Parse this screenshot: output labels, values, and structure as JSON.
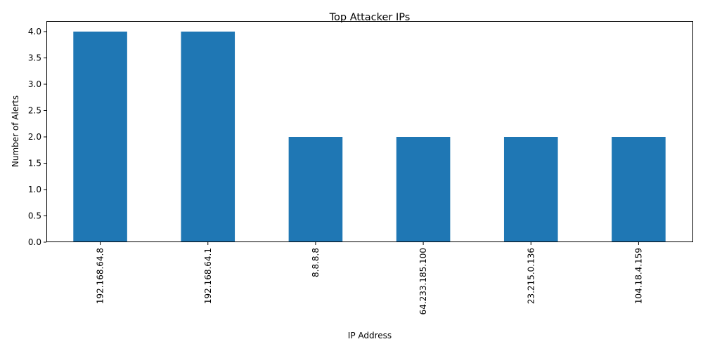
{
  "chart_data": {
    "type": "bar",
    "title": "Top Attacker IPs",
    "xlabel": "IP Address",
    "ylabel": "Number of Alerts",
    "categories": [
      "192.168.64.8",
      "192.168.64.1",
      "8.8.8.8",
      "64.233.185.100",
      "23.215.0.136",
      "104.18.4.159"
    ],
    "values": [
      4,
      4,
      2,
      2,
      2,
      2
    ],
    "ylim": [
      0,
      4.2
    ],
    "yticks": [
      "0.0",
      "0.5",
      "1.0",
      "1.5",
      "2.0",
      "2.5",
      "3.0",
      "3.5",
      "4.0"
    ],
    "grid": false,
    "legend": false,
    "bar_color": "#1f77b4"
  }
}
